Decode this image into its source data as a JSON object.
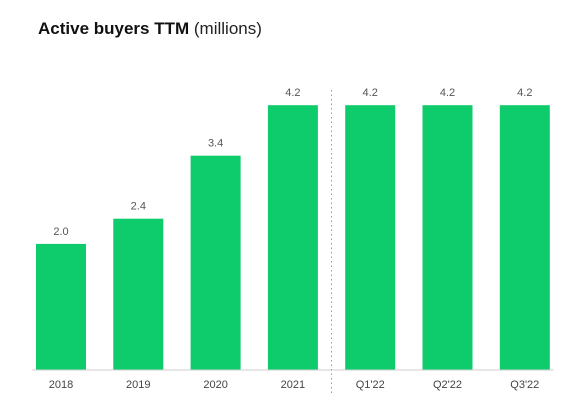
{
  "title": {
    "bold": "Active buyers TTM",
    "unit": "(millions)"
  },
  "colors": {
    "bar": "#0ECB6C",
    "divider": "#9A9A9A",
    "axis": "#CFCFCF"
  },
  "chart_data": {
    "type": "bar",
    "title": "Active buyers TTM (millions)",
    "xlabel": "",
    "ylabel": "",
    "categories": [
      "2018",
      "2019",
      "2020",
      "2021",
      "Q1'22",
      "Q2'22",
      "Q3'22"
    ],
    "values": [
      2.0,
      2.4,
      3.4,
      4.2,
      4.2,
      4.2,
      4.2
    ],
    "value_labels": [
      "2.0",
      "2.4",
      "3.4",
      "4.2",
      "4.2",
      "4.2",
      "4.2"
    ],
    "ylim": [
      0,
      4.6
    ],
    "grid": false,
    "legend": "none",
    "divider_after_category": "2021"
  }
}
